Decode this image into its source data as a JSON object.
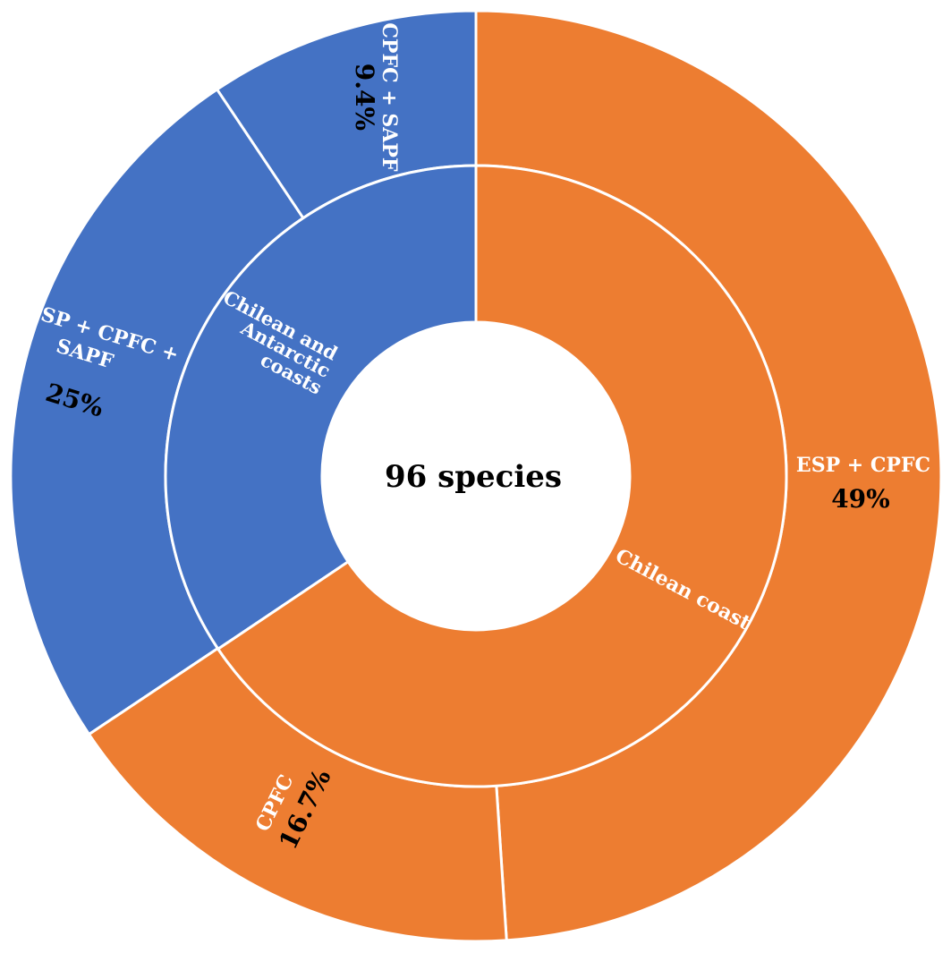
{
  "chart_data": {
    "type": "sunburst",
    "center_label": "96 species",
    "inner_ring": [
      {
        "label": "Chilean and Antarctic coasts",
        "lines": [
          "Chilean and",
          "Antarctic",
          "coasts"
        ],
        "value": 34.4,
        "color": "#4472C4"
      },
      {
        "label": "Chilean coast",
        "lines": [
          "Chilean coast"
        ],
        "value": 65.6,
        "color": "#ED7D31"
      }
    ],
    "outer_ring": [
      {
        "label": "CPFC + SAPF",
        "value": 9.4,
        "value_label": "9.4%",
        "color": "#4472C4",
        "parent": "Chilean and Antarctic coasts"
      },
      {
        "label": "ESP + CPFC + SAPF",
        "value": 25,
        "value_label": "25%",
        "color": "#4472C4",
        "parent": "Chilean and Antarctic coasts"
      },
      {
        "label": "CPFC",
        "value": 16.7,
        "value_label": "16.7%",
        "color": "#ED7D31",
        "parent": "Chilean coast"
      },
      {
        "label": "ESP + CPFC",
        "value": 49,
        "value_label": "49%",
        "color": "#ED7D31",
        "parent": "Chilean coast"
      }
    ]
  }
}
